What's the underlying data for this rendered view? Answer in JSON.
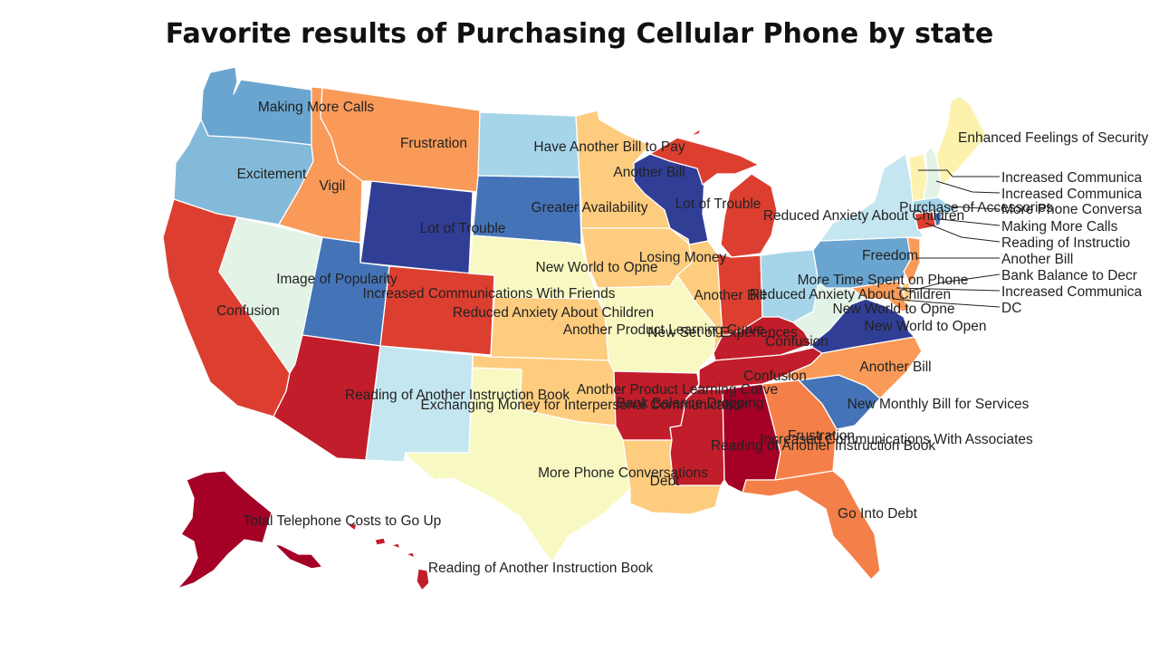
{
  "title": "Favorite results of Purchasing Cellular Phone by state",
  "colors": {
    "dark_red": "#a50026",
    "red": "#c21d2a",
    "orange_red": "#dc3f30",
    "orange": "#f57f48",
    "light_orange": "#f99a58",
    "tan": "#fdcc7e",
    "pale_yellow": "#fdf2ad",
    "cream": "#f8f8c2",
    "pale_green": "#e3f3e6",
    "pale_blue": "#c4e6f0",
    "light_blue": "#a6d5ea",
    "mid_blue": "#84bad9",
    "blue": "#6aa5d0",
    "steel_blue": "#4573b8",
    "navy": "#313e96"
  },
  "states": {
    "WA": "Making More Calls",
    "OR": "Excitement",
    "ID": "Vigil",
    "MT": "Frustration",
    "WY": "Lot of Trouble",
    "NV": "Image of Popularity",
    "CA": "Confusion",
    "UT": "Increased Communications With Friends",
    "CO": "Reduced Anxiety About Children",
    "AZ": "Reading of Another Instruction Book",
    "NM": "Exchanging Money for Interpersonal Communication",
    "ND": "Have Another Bill to Pay",
    "SD": "Greater Availability",
    "NE": "New World to Opne",
    "KS": "Another Product Learning Curve",
    "OK": "Another Product Learning Curve",
    "TX": "More Phone Conversations",
    "MN": "Another Bill",
    "IA": "Losing Money",
    "MO": "New Set of Experiences",
    "AR": "Bank Balance Dropping",
    "LA": "Debt",
    "WI": "Lot of Trouble",
    "IL": "Another Bill",
    "MI": "Reduced Anxiety About Children",
    "IN": "Reduced Anxiety About Children",
    "OH": "More Time Spent on Phone",
    "KY": "Confusion",
    "TN": "Confusion",
    "MS": "Reading of Another Instruction Book",
    "AL": "Increased Communications With Associates",
    "GA": "Frustration",
    "FL": "Go Into Debt",
    "SC": "New Monthly Bill for Services",
    "NC": "Another Bill",
    "VA": "New World to Open",
    "WV": "New World to Opne",
    "PA": "Freedom",
    "NY": "Purchase of Accessories",
    "ME": "Enhanced Feelings of Security",
    "AK": "Total Telephone Costs to Go Up",
    "HI": "Reading of Another Instruction Book"
  },
  "callouts": {
    "VT": "Increased Communica",
    "NH": "Increased Communica",
    "MA": "More Phone Conversa",
    "RI": "Making More Calls",
    "CT": "Reading of Instructio",
    "NJ": "Another Bill",
    "DE": "Bank Balance to Decr",
    "MD": "Increased Communica",
    "DC": "DC"
  }
}
